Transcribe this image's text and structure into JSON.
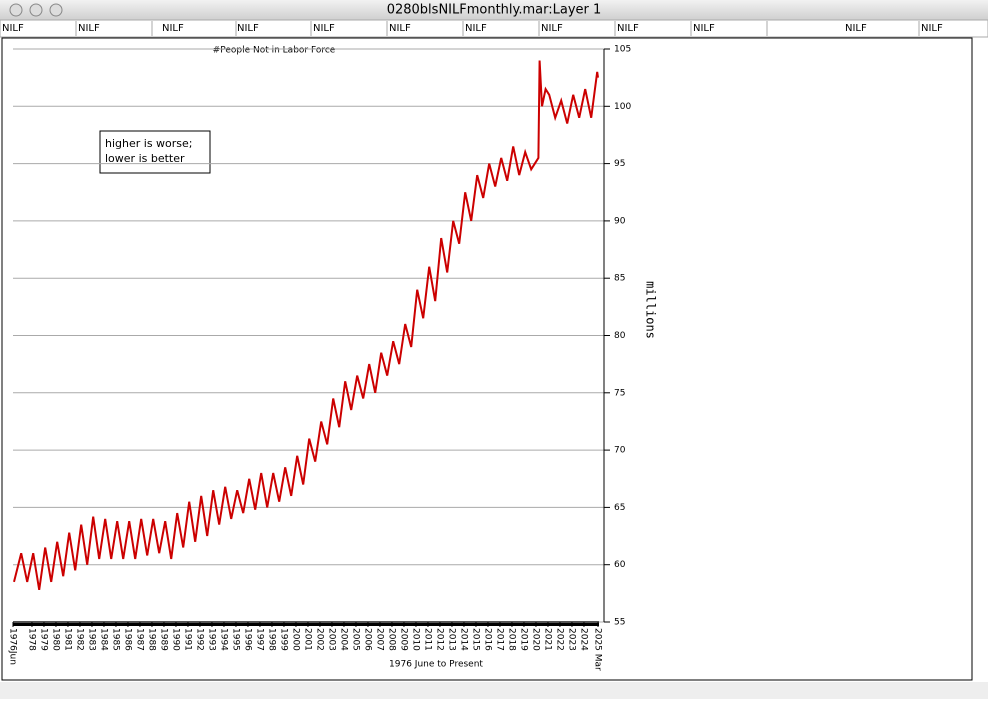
{
  "window": {
    "title": "0280blsNILFmonthly.mar:Layer 1"
  },
  "header": {
    "labels": [
      "NILF",
      "NILF",
      "NILF",
      "NILF",
      "NILF",
      "NILF",
      "NILF",
      "NILF",
      "NILF",
      "NILF",
      "NILF",
      "NILF"
    ]
  },
  "chart_data": {
    "type": "line",
    "title": "#People Not in Labor Force",
    "x_label": "1976 June to Present",
    "y_label": "millions",
    "annotation": [
      "higher is worse;",
      "lower is better"
    ],
    "xlim": [
      1976.42,
      2025.17
    ],
    "ylim": [
      55,
      105
    ],
    "yticks": [
      55,
      60,
      65,
      70,
      75,
      80,
      85,
      90,
      95,
      100,
      105
    ],
    "xticks": [
      {
        "value": 1976.42,
        "label": "1976Jun"
      },
      1978,
      1979,
      1980,
      1981,
      1982,
      1983,
      1984,
      1985,
      1986,
      1987,
      1988,
      1989,
      1990,
      1991,
      1992,
      1993,
      1994,
      1995,
      1996,
      1997,
      1998,
      1999,
      2000,
      2001,
      2002,
      2003,
      2004,
      2005,
      2006,
      2007,
      2008,
      2009,
      2010,
      2011,
      2012,
      2013,
      2014,
      2015,
      2016,
      2017,
      2018,
      2019,
      2020,
      2021,
      2022,
      2023,
      2024,
      {
        "value": 2025.17,
        "label": "2025 Mar"
      }
    ],
    "grid": true,
    "series": [
      {
        "name": "NILF",
        "color": "#cc0000",
        "x": [
          1976.5,
          1977.1,
          1977.6,
          1978.1,
          1978.6,
          1979.1,
          1979.6,
          1980.1,
          1980.6,
          1981.1,
          1981.6,
          1982.1,
          1982.6,
          1983.1,
          1983.6,
          1984.1,
          1984.6,
          1985.1,
          1985.6,
          1986.1,
          1986.6,
          1987.1,
          1987.6,
          1988.1,
          1988.6,
          1989.1,
          1989.6,
          1990.1,
          1990.6,
          1991.1,
          1991.6,
          1992.1,
          1992.6,
          1993.1,
          1993.6,
          1994.1,
          1994.6,
          1995.1,
          1995.6,
          1996.1,
          1996.6,
          1997.1,
          1997.6,
          1998.1,
          1998.6,
          1999.1,
          1999.6,
          2000.1,
          2000.6,
          2001.1,
          2001.6,
          2002.1,
          2002.6,
          2003.1,
          2003.6,
          2004.1,
          2004.6,
          2005.1,
          2005.6,
          2006.1,
          2006.6,
          2007.1,
          2007.6,
          2008.1,
          2008.6,
          2009.1,
          2009.6,
          2010.1,
          2010.6,
          2011.1,
          2011.6,
          2012.1,
          2012.6,
          2013.1,
          2013.6,
          2014.1,
          2014.6,
          2015.1,
          2015.6,
          2016.1,
          2016.6,
          2017.1,
          2017.6,
          2018.1,
          2018.6,
          2019.1,
          2019.6,
          2020.2,
          2020.3,
          2020.5,
          2020.8,
          2021.1,
          2021.6,
          2022.1,
          2022.6,
          2023.1,
          2023.6,
          2024.1,
          2024.6,
          2025.1,
          2025.17
        ],
        "values": [
          58.5,
          61.0,
          58.5,
          61.0,
          57.8,
          61.5,
          58.5,
          62.0,
          59.0,
          62.8,
          59.5,
          63.5,
          60.0,
          64.2,
          60.5,
          64.0,
          60.5,
          63.8,
          60.5,
          63.8,
          60.5,
          64.0,
          60.8,
          64.0,
          61.0,
          63.8,
          60.5,
          64.5,
          61.5,
          65.5,
          62.0,
          66.0,
          62.5,
          66.5,
          63.5,
          66.8,
          64.0,
          66.5,
          64.5,
          67.5,
          64.8,
          68.0,
          65.0,
          68.0,
          65.5,
          68.5,
          66.0,
          69.5,
          67.0,
          71.0,
          69.0,
          72.5,
          70.5,
          74.5,
          72.0,
          76.0,
          73.5,
          76.5,
          74.5,
          77.5,
          75.0,
          78.5,
          76.5,
          79.5,
          77.5,
          81.0,
          79.0,
          84.0,
          81.5,
          86.0,
          83.0,
          88.5,
          85.5,
          90.0,
          88.0,
          92.5,
          90.0,
          94.0,
          92.0,
          95.0,
          93.0,
          95.5,
          93.5,
          96.5,
          94.0,
          96.0,
          94.5,
          95.5,
          104.0,
          100.0,
          101.5,
          101.0,
          99.0,
          100.5,
          98.5,
          101.0,
          99.0,
          101.5,
          99.0,
          103.0,
          102.5
        ]
      }
    ]
  }
}
